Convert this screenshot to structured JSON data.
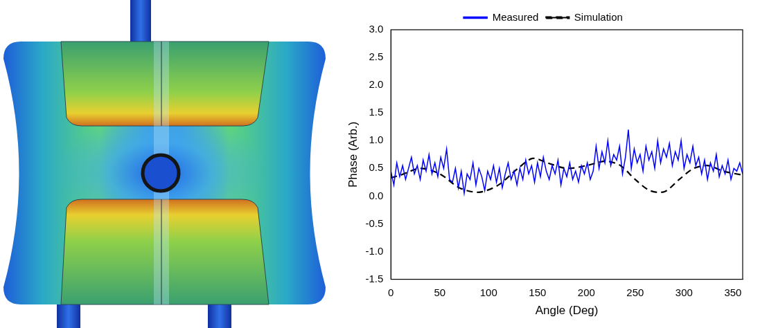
{
  "chart_data": {
    "type": "line",
    "x_label": "Angle (Deg)",
    "y_label": "Phase (Arb.)",
    "xlim": [
      0,
      360
    ],
    "xticks": [
      0,
      50,
      100,
      150,
      200,
      250,
      300,
      350
    ],
    "ylim": [
      -1.5,
      3.0
    ],
    "yticks": [
      -1.5,
      {
        "value": -1.0,
        "label": "-1.0"
      },
      -0.5,
      {
        "value": 0.0,
        "label": "0.0"
      },
      0.5,
      {
        "value": 1.0,
        "label": "1.0"
      },
      1.5,
      {
        "value": 2.0,
        "label": "2.0"
      },
      2.5,
      {
        "value": 3.0,
        "label": "3.0"
      }
    ],
    "grid": false,
    "legend": "top",
    "series": [
      {
        "name": "Measured",
        "color": "#0000ff",
        "line_style": "solid",
        "x": [
          0,
          3,
          6,
          9,
          12,
          15,
          18,
          21,
          24,
          27,
          30,
          33,
          36,
          39,
          42,
          45,
          48,
          51,
          54,
          57,
          60,
          63,
          66,
          69,
          72,
          75,
          78,
          81,
          84,
          87,
          90,
          93,
          96,
          99,
          102,
          105,
          108,
          111,
          114,
          117,
          120,
          123,
          126,
          129,
          132,
          135,
          138,
          141,
          144,
          147,
          150,
          153,
          156,
          159,
          162,
          165,
          168,
          171,
          174,
          177,
          180,
          183,
          186,
          189,
          192,
          195,
          198,
          201,
          204,
          207,
          210,
          213,
          216,
          219,
          222,
          225,
          228,
          231,
          234,
          237,
          240,
          243,
          246,
          249,
          252,
          255,
          258,
          261,
          264,
          267,
          270,
          273,
          276,
          279,
          282,
          285,
          288,
          291,
          294,
          297,
          300,
          303,
          306,
          309,
          312,
          315,
          318,
          321,
          324,
          327,
          330,
          333,
          336,
          339,
          342,
          345,
          348,
          351,
          354,
          357,
          360
        ],
        "values": [
          0.45,
          0.2,
          0.6,
          0.35,
          0.55,
          0.3,
          0.5,
          0.7,
          0.4,
          0.55,
          0.3,
          0.65,
          0.45,
          0.75,
          0.4,
          0.6,
          0.35,
          0.7,
          0.5,
          0.85,
          0.3,
          0.25,
          0.5,
          0.15,
          0.45,
          0.05,
          0.4,
          0.3,
          0.6,
          0.2,
          0.5,
          0.35,
          0.1,
          0.45,
          0.3,
          0.55,
          0.25,
          0.5,
          0.15,
          0.4,
          0.6,
          0.3,
          0.45,
          0.2,
          0.5,
          0.3,
          0.65,
          0.4,
          0.55,
          0.25,
          0.6,
          0.35,
          0.7,
          0.45,
          0.3,
          0.55,
          0.4,
          0.65,
          0.2,
          0.5,
          0.35,
          0.6,
          0.3,
          0.45,
          0.25,
          0.55,
          0.4,
          0.6,
          0.3,
          0.45,
          0.9,
          0.5,
          0.8,
          0.6,
          1.0,
          0.55,
          0.75,
          0.65,
          0.9,
          0.4,
          0.7,
          1.2,
          0.5,
          0.85,
          0.6,
          0.75,
          0.45,
          0.9,
          0.65,
          0.8,
          0.5,
          1.0,
          0.6,
          0.85,
          0.7,
          0.95,
          0.55,
          0.8,
          0.65,
          1.0,
          0.5,
          0.75,
          0.6,
          0.9,
          0.55,
          0.7,
          0.4,
          0.65,
          0.3,
          0.6,
          0.45,
          0.75,
          0.35,
          0.55,
          0.4,
          0.65,
          0.3,
          0.5,
          0.45,
          0.6,
          0.4
        ]
      },
      {
        "name": "Simulation",
        "color": "#000000",
        "line_style": "dashed",
        "x": [
          0,
          10,
          30,
          50,
          70,
          90,
          110,
          130,
          145,
          160,
          180,
          200,
          220,
          235,
          250,
          265,
          280,
          295,
          310,
          325,
          340,
          360
        ],
        "values": [
          0.33,
          0.38,
          0.5,
          0.4,
          0.15,
          0.07,
          0.2,
          0.5,
          0.68,
          0.6,
          0.5,
          0.55,
          0.63,
          0.55,
          0.3,
          0.1,
          0.08,
          0.3,
          0.5,
          0.55,
          0.45,
          0.38
        ]
      }
    ]
  }
}
